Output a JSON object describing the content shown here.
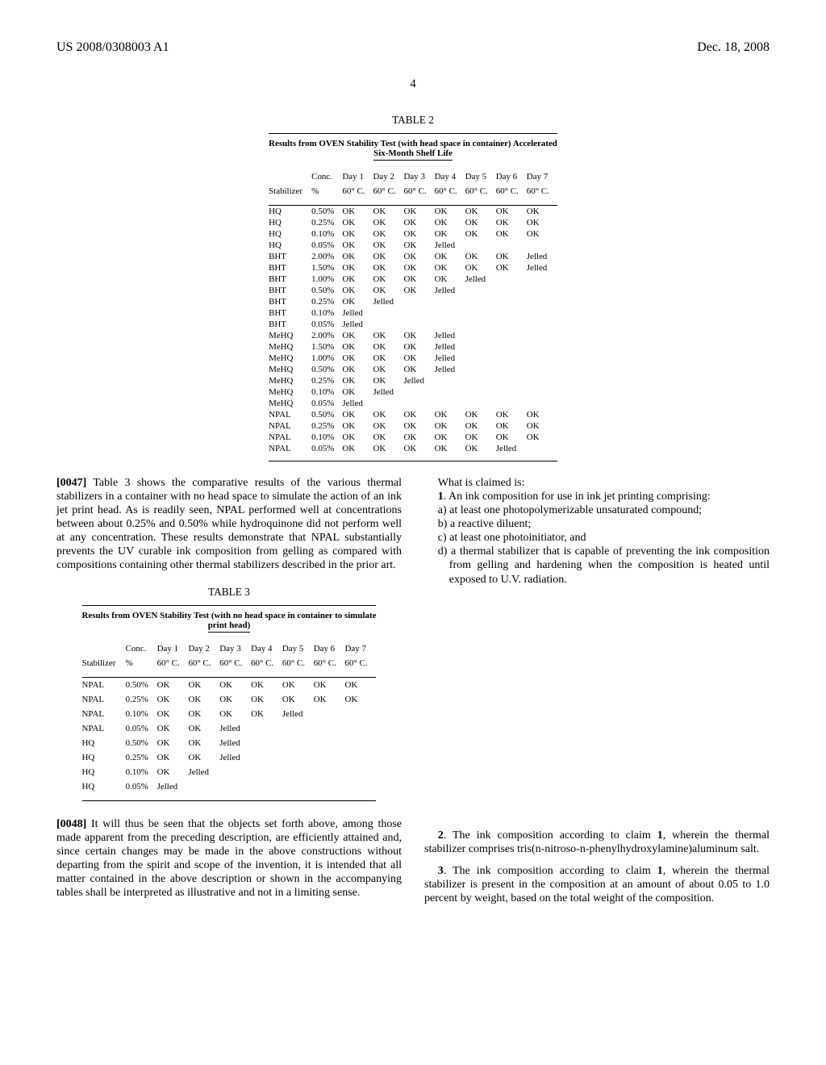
{
  "header": {
    "pub_number": "US 2008/0308003 A1",
    "pub_date": "Dec. 18, 2008"
  },
  "page_number": "4",
  "table2": {
    "label": "TABLE 2",
    "subtitle_line1": "Results from OVEN Stability Test (with head space in container) Accelerated",
    "subtitle_line2": "Six-Month Shelf Life",
    "columns": [
      "Stabilizer",
      "Conc. %",
      "Day 1 60° C.",
      "Day 2 60° C.",
      "Day 3 60° C.",
      "Day 4 60° C.",
      "Day 5 60° C.",
      "Day 6 60° C.",
      "Day 7 60° C."
    ],
    "col_heads_top": [
      "",
      "Conc.",
      "Day 1",
      "Day 2",
      "Day 3",
      "Day 4",
      "Day 5",
      "Day 6",
      "Day 7"
    ],
    "col_heads_bot": [
      "Stabilizer",
      "%",
      "60° C.",
      "60° C.",
      "60° C.",
      "60° C.",
      "60° C.",
      "60° C.",
      "60° C."
    ],
    "rows": [
      [
        "HQ",
        "0.50%",
        "OK",
        "OK",
        "OK",
        "OK",
        "OK",
        "OK",
        "OK"
      ],
      [
        "HQ",
        "0.25%",
        "OK",
        "OK",
        "OK",
        "OK",
        "OK",
        "OK",
        "OK"
      ],
      [
        "HQ",
        "0.10%",
        "OK",
        "OK",
        "OK",
        "OK",
        "OK",
        "OK",
        "OK"
      ],
      [
        "HQ",
        "0.05%",
        "OK",
        "OK",
        "OK",
        "Jelled",
        "",
        "",
        ""
      ],
      [
        "BHT",
        "2.00%",
        "OK",
        "OK",
        "OK",
        "OK",
        "OK",
        "OK",
        "Jelled"
      ],
      [
        "BHT",
        "1.50%",
        "OK",
        "OK",
        "OK",
        "OK",
        "OK",
        "OK",
        "Jelled"
      ],
      [
        "BHT",
        "1.00%",
        "OK",
        "OK",
        "OK",
        "OK",
        "Jelled",
        "",
        ""
      ],
      [
        "BHT",
        "0.50%",
        "OK",
        "OK",
        "OK",
        "Jelled",
        "",
        "",
        ""
      ],
      [
        "BHT",
        "0.25%",
        "OK",
        "Jelled",
        "",
        "",
        "",
        "",
        ""
      ],
      [
        "BHT",
        "0.10%",
        "Jelled",
        "",
        "",
        "",
        "",
        "",
        ""
      ],
      [
        "BHT",
        "0.05%",
        "Jelled",
        "",
        "",
        "",
        "",
        "",
        ""
      ],
      [
        "MeHQ",
        "2.00%",
        "OK",
        "OK",
        "OK",
        "Jelled",
        "",
        "",
        ""
      ],
      [
        "MeHQ",
        "1.50%",
        "OK",
        "OK",
        "OK",
        "Jelled",
        "",
        "",
        ""
      ],
      [
        "MeHQ",
        "1.00%",
        "OK",
        "OK",
        "OK",
        "Jelled",
        "",
        "",
        ""
      ],
      [
        "MeHQ",
        "0.50%",
        "OK",
        "OK",
        "OK",
        "Jelled",
        "",
        "",
        ""
      ],
      [
        "MeHQ",
        "0.25%",
        "OK",
        "OK",
        "Jelled",
        "",
        "",
        "",
        ""
      ],
      [
        "MeHQ",
        "0.10%",
        "OK",
        "Jelled",
        "",
        "",
        "",
        "",
        ""
      ],
      [
        "MeHQ",
        "0.05%",
        "Jelled",
        "",
        "",
        "",
        "",
        "",
        ""
      ],
      [
        "NPAL",
        "0.50%",
        "OK",
        "OK",
        "OK",
        "OK",
        "OK",
        "OK",
        "OK"
      ],
      [
        "NPAL",
        "0.25%",
        "OK",
        "OK",
        "OK",
        "OK",
        "OK",
        "OK",
        "OK"
      ],
      [
        "NPAL",
        "0.10%",
        "OK",
        "OK",
        "OK",
        "OK",
        "OK",
        "OK",
        "OK"
      ],
      [
        "NPAL",
        "0.05%",
        "OK",
        "OK",
        "OK",
        "OK",
        "OK",
        "Jelled",
        ""
      ]
    ]
  },
  "para47_label": "[0047]",
  "para47_text": " Table 3 shows the comparative results of the various thermal stabilizers in a container with no head space to simulate the action of an ink jet print head. As is readily seen, NPAL performed well at concentrations between about 0.25% and 0.50% while hydroquinone did not perform well at any concentration. These results demonstrate that NPAL substantially prevents the UV curable ink composition from gelling as compared with compositions containing other thermal stabilizers described in the prior art.",
  "table3": {
    "label": "TABLE 3",
    "subtitle_line1": "Results from OVEN Stability Test (with no head space in container to simulate",
    "subtitle_line2": "print head)",
    "col_heads_top": [
      "",
      "Conc.",
      "Day 1",
      "Day 2",
      "Day 3",
      "Day 4",
      "Day 5",
      "Day 6",
      "Day 7"
    ],
    "col_heads_bot": [
      "Stabilizer",
      "%",
      "60° C.",
      "60° C.",
      "60° C.",
      "60° C.",
      "60° C.",
      "60° C.",
      "60° C."
    ],
    "rows": [
      [
        "NPAL",
        "0.50%",
        "OK",
        "OK",
        "OK",
        "OK",
        "OK",
        "OK",
        "OK"
      ],
      [
        "NPAL",
        "0.25%",
        "OK",
        "OK",
        "OK",
        "OK",
        "OK",
        "OK",
        "OK"
      ],
      [
        "NPAL",
        "0.10%",
        "OK",
        "OK",
        "OK",
        "OK",
        "Jelled",
        "",
        ""
      ],
      [
        "NPAL",
        "0.05%",
        "OK",
        "OK",
        "Jelled",
        "",
        "",
        "",
        ""
      ],
      [
        "HQ",
        "0.50%",
        "OK",
        "OK",
        "Jelled",
        "",
        "",
        "",
        ""
      ],
      [
        "HQ",
        "0.25%",
        "OK",
        "OK",
        "Jelled",
        "",
        "",
        "",
        ""
      ],
      [
        "HQ",
        "0.10%",
        "OK",
        "Jelled",
        "",
        "",
        "",
        "",
        ""
      ],
      [
        "HQ",
        "0.05%",
        "Jelled",
        "",
        "",
        "",
        "",
        "",
        ""
      ]
    ]
  },
  "para48_label": "[0048]",
  "para48_text": " It will thus be seen that the objects set forth above, among those made apparent from the preceding description, are efficiently attained and, since certain changes may be made in the above constructions without departing from the spirit and scope of the invention, it is intended that all matter contained in the above description or shown in the accompanying tables shall be interpreted as illustrative and not in a limiting sense.",
  "claims_lead": "What is claimed is:",
  "claim1_lead": "1. An ink composition for use in ink jet printing comprising:",
  "claim1_items": [
    "a) at least one photopolymerizable unsaturated compound;",
    "b) a reactive diluent;",
    "c) at least one photoinitiator, and",
    "d) a thermal stabilizer that is capable of preventing the ink composition from gelling and hardening when the composition is heated until exposed to U.V. radiation."
  ],
  "claim2": "2. The ink composition according to claim 1, wherein the thermal stabilizer comprises tris(n-nitroso-n-phenylhydroxylamine)aluminum salt.",
  "claim3": "3. The ink composition according to claim 1, wherein the thermal stabilizer is present in the composition at an amount of about 0.05 to 1.0 percent by weight, based on the total weight of the composition."
}
